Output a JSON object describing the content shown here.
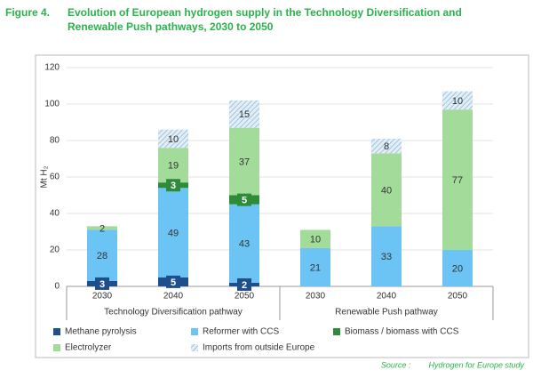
{
  "chart_data": {
    "type": "stacked_bar",
    "figure_label": "Figure 4.",
    "title": "Evolution of European hydrogen supply in the Technology Diversification and Renewable Push pathways, 2030 to 2050",
    "y_label": "Mt H₂",
    "categories": [
      "2030",
      "2040",
      "2050",
      "2030",
      "2040",
      "2050"
    ],
    "groups": [
      "Technology Diversification pathway",
      "Renewable Push pathway"
    ],
    "ylim": [
      0,
      120
    ],
    "yticks": [
      0,
      20,
      40,
      60,
      80,
      100,
      120
    ],
    "grid": true,
    "series": [
      {
        "name": "Methane pyrolysis",
        "color": "#1f4e8c",
        "label_box": true,
        "values": [
          3,
          5,
          2,
          null,
          null,
          null
        ]
      },
      {
        "name": "Reformer with CCS",
        "color": "#6cc4f4",
        "values": [
          28,
          49,
          43,
          21,
          33,
          20
        ]
      },
      {
        "name": "Biomass / biomass with CCS",
        "color": "#2e8b3a",
        "label_box": true,
        "values": [
          null,
          3,
          5,
          null,
          null,
          null
        ]
      },
      {
        "name": "Electrolyzer",
        "color": "#a3dc9a",
        "values": [
          2,
          19,
          37,
          10,
          40,
          77
        ]
      },
      {
        "name": "Imports from outside Europe",
        "color": "#9cc3e0",
        "pattern": "hatch",
        "values": [
          null,
          10,
          15,
          null,
          8,
          10
        ]
      }
    ],
    "source_label": "Source :",
    "source": "Hydrogen for Europe study"
  }
}
